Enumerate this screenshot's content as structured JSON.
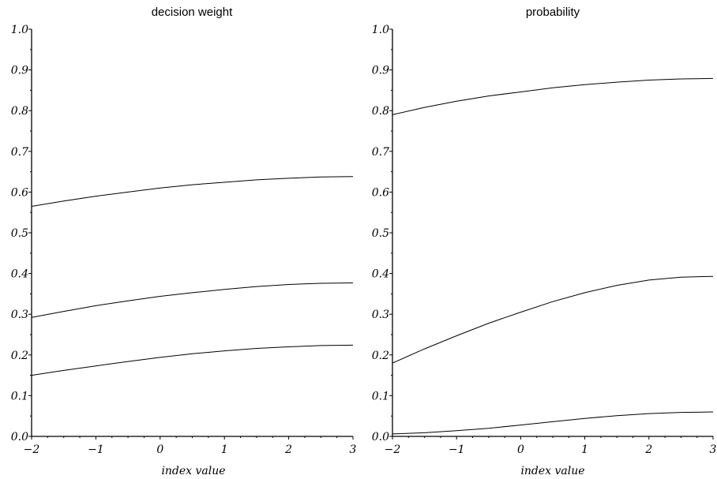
{
  "chart_data": [
    {
      "type": "line",
      "title": "decision weight",
      "xlabel": "index value",
      "ylabel": "",
      "xlim": [
        -2,
        3
      ],
      "ylim": [
        0.0,
        1.0
      ],
      "xticks": [
        "−2",
        "−1",
        "0",
        "1",
        "2",
        "3"
      ],
      "yticks": [
        "0.0",
        "0.1",
        "0.2",
        "0.3",
        "0.4",
        "0.5",
        "0.6",
        "0.7",
        "0.8",
        "0.9",
        "1.0"
      ],
      "grid": false,
      "x": [
        -2,
        -1.5,
        -1,
        -0.5,
        0,
        0.5,
        1,
        1.5,
        2,
        2.5,
        3
      ],
      "series": [
        {
          "values": [
            0.565,
            0.578,
            0.59,
            0.6,
            0.61,
            0.618,
            0.624,
            0.63,
            0.634,
            0.637,
            0.638
          ]
        },
        {
          "values": [
            0.292,
            0.307,
            0.321,
            0.333,
            0.344,
            0.353,
            0.361,
            0.368,
            0.373,
            0.376,
            0.377
          ]
        },
        {
          "values": [
            0.15,
            0.162,
            0.173,
            0.184,
            0.194,
            0.203,
            0.21,
            0.216,
            0.22,
            0.223,
            0.224
          ]
        }
      ]
    },
    {
      "type": "line",
      "title": "probability",
      "xlabel": "index value",
      "ylabel": "",
      "xlim": [
        -2,
        3
      ],
      "ylim": [
        0.0,
        1.0
      ],
      "xticks": [
        "−2",
        "−1",
        "0",
        "1",
        "2",
        "3"
      ],
      "yticks": [
        "0.0",
        "0.1",
        "0.2",
        "0.3",
        "0.4",
        "0.5",
        "0.6",
        "0.7",
        "0.8",
        "0.9",
        "1.0"
      ],
      "grid": false,
      "x": [
        -2,
        -1.5,
        -1,
        -0.5,
        0,
        0.5,
        1,
        1.5,
        2,
        2.5,
        3
      ],
      "series": [
        {
          "values": [
            0.79,
            0.808,
            0.823,
            0.836,
            0.846,
            0.856,
            0.864,
            0.87,
            0.875,
            0.878,
            0.879
          ]
        },
        {
          "values": [
            0.18,
            0.215,
            0.247,
            0.278,
            0.305,
            0.331,
            0.353,
            0.371,
            0.384,
            0.391,
            0.393
          ]
        },
        {
          "values": [
            0.006,
            0.009,
            0.014,
            0.02,
            0.028,
            0.036,
            0.044,
            0.051,
            0.056,
            0.059,
            0.06
          ]
        }
      ]
    }
  ]
}
